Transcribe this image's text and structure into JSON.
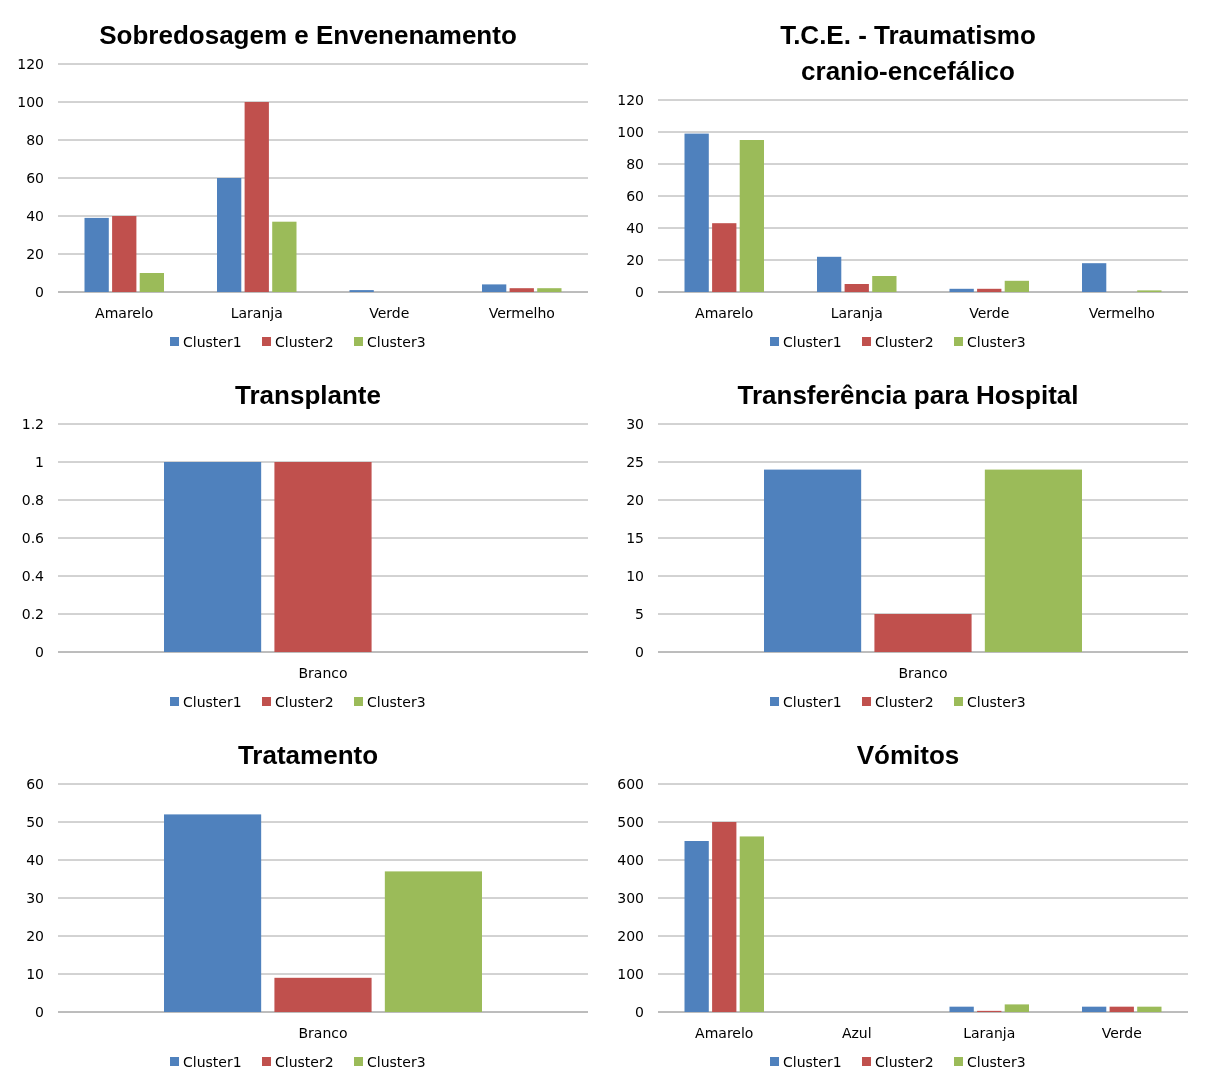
{
  "chart_data": [
    {
      "type": "bar",
      "title": "Sobredosagem e Envenenamento",
      "categories": [
        "Amarelo",
        "Laranja",
        "Verde",
        "Vermelho"
      ],
      "series": [
        {
          "name": "Cluster1",
          "color": "#4f81bd",
          "values": [
            39,
            60,
            1,
            4
          ]
        },
        {
          "name": "Cluster2",
          "color": "#c0504d",
          "values": [
            40,
            100,
            0,
            2
          ]
        },
        {
          "name": "Cluster3",
          "color": "#9bbb59",
          "values": [
            10,
            37,
            0,
            2
          ]
        }
      ],
      "ylim": [
        0,
        120
      ],
      "yticks": [
        0,
        20,
        40,
        60,
        80,
        100,
        120
      ],
      "grid": "y",
      "legend": "bottom"
    },
    {
      "type": "bar",
      "title": "T.C.E. - Traumatismo cranio-encefálico",
      "categories": [
        "Amarelo",
        "Laranja",
        "Verde",
        "Vermelho"
      ],
      "series": [
        {
          "name": "Cluster1",
          "color": "#4f81bd",
          "values": [
            99,
            22,
            2,
            18
          ]
        },
        {
          "name": "Cluster2",
          "color": "#c0504d",
          "values": [
            43,
            5,
            2,
            0
          ]
        },
        {
          "name": "Cluster3",
          "color": "#9bbb59",
          "values": [
            95,
            10,
            7,
            1
          ]
        }
      ],
      "ylim": [
        0,
        120
      ],
      "yticks": [
        0,
        20,
        40,
        60,
        80,
        100,
        120
      ],
      "grid": "y",
      "legend": "bottom"
    },
    {
      "type": "bar",
      "title": "Transplante",
      "categories": [
        "Branco"
      ],
      "series": [
        {
          "name": "Cluster1",
          "color": "#4f81bd",
          "values": [
            1
          ]
        },
        {
          "name": "Cluster2",
          "color": "#c0504d",
          "values": [
            1
          ]
        },
        {
          "name": "Cluster3",
          "color": "#9bbb59",
          "values": [
            0
          ]
        }
      ],
      "ylim": [
        0,
        1.2
      ],
      "yticks": [
        0,
        0.2,
        0.4,
        0.6,
        0.8,
        1,
        1.2
      ],
      "grid": "y",
      "legend": "bottom"
    },
    {
      "type": "bar",
      "title": "Transferência para Hospital",
      "categories": [
        "Branco"
      ],
      "series": [
        {
          "name": "Cluster1",
          "color": "#4f81bd",
          "values": [
            24
          ]
        },
        {
          "name": "Cluster2",
          "color": "#c0504d",
          "values": [
            5
          ]
        },
        {
          "name": "Cluster3",
          "color": "#9bbb59",
          "values": [
            24
          ]
        }
      ],
      "ylim": [
        0,
        30
      ],
      "yticks": [
        0,
        5,
        10,
        15,
        20,
        25,
        30
      ],
      "grid": "y",
      "legend": "bottom"
    },
    {
      "type": "bar",
      "title": "Tratamento",
      "categories": [
        "Branco"
      ],
      "series": [
        {
          "name": "Cluster1",
          "color": "#4f81bd",
          "values": [
            52
          ]
        },
        {
          "name": "Cluster2",
          "color": "#c0504d",
          "values": [
            9
          ]
        },
        {
          "name": "Cluster3",
          "color": "#9bbb59",
          "values": [
            37
          ]
        }
      ],
      "ylim": [
        0,
        60
      ],
      "yticks": [
        0,
        10,
        20,
        30,
        40,
        50,
        60
      ],
      "grid": "y",
      "legend": "bottom"
    },
    {
      "type": "bar",
      "title": "Vómitos",
      "categories": [
        "Amarelo",
        "Azul",
        "Laranja",
        "Verde"
      ],
      "series": [
        {
          "name": "Cluster1",
          "color": "#4f81bd",
          "values": [
            450,
            0,
            14,
            14
          ]
        },
        {
          "name": "Cluster2",
          "color": "#c0504d",
          "values": [
            500,
            0,
            3,
            14
          ]
        },
        {
          "name": "Cluster3",
          "color": "#9bbb59",
          "values": [
            462,
            0,
            20,
            14
          ]
        }
      ],
      "ylim": [
        0,
        600
      ],
      "yticks": [
        0,
        100,
        200,
        300,
        400,
        500,
        600
      ],
      "grid": "y",
      "legend": "bottom"
    }
  ]
}
